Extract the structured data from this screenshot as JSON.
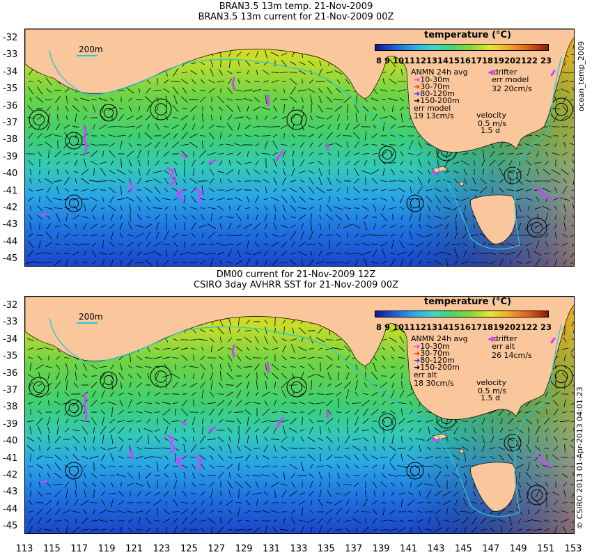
{
  "panels": [
    {
      "title_line1": "BRAN3.5 13m temp. 21-Nov-2009",
      "title_line2": "BRAN3.5 13m current for 21-Nov-2009 00Z",
      "colorbar_title": "temperature (°C)",
      "colorbar_ticks": "8  9 10111213141516171819202122 23",
      "depth_label": "200m",
      "anmn_title": "ANMN 24h avg",
      "anmn_items": [
        "10-30m",
        "30-70m",
        "80-120m",
        "150-200m"
      ],
      "err_label": "err model",
      "err_value": "19 13cm/s",
      "drifter_label": "drifter",
      "drifter_err_label": "err model",
      "drifter_err_value": "32 20cm/s",
      "velocity_label": "velocity",
      "velocity_scale": "0.5 m/s",
      "velocity_days": "1.5 d",
      "side_text": "ocean_temp_2009"
    },
    {
      "title_line1": "DM00 current for 21-Nov-2009 12Z",
      "title_line2": "CSIRO 3day AVHRR SST for 21-Nov-2009 00Z",
      "colorbar_title": "temperature (°C)",
      "colorbar_ticks": "8  9 10111213141516171819202122 23",
      "depth_label": "200m",
      "anmn_title": "ANMN 24h avg",
      "anmn_items": [
        "10-30m",
        "30-70m",
        "80-120m",
        "150-200m"
      ],
      "err_label": "err alt",
      "err_value": "18 30cm/s",
      "drifter_label": "drifter",
      "drifter_err_label": "err alt",
      "drifter_err_value": "26 14cm/s",
      "velocity_label": "velocity",
      "velocity_scale": "0.5 m/s",
      "velocity_days": "1.5 d",
      "side_text": "© CSIRO 2013  01-Apr-2013 04:01:23"
    }
  ],
  "lat_labels": [
    "-32",
    "-33",
    "-34",
    "-35",
    "-36",
    "-37",
    "-38",
    "-39",
    "-40",
    "-41",
    "-42",
    "-43",
    "-44",
    "-45"
  ],
  "lon_labels": [
    "113",
    "115",
    "117",
    "119",
    "121",
    "123",
    "125",
    "127",
    "129",
    "131",
    "133",
    "135",
    "137",
    "139",
    "141",
    "143",
    "145",
    "147",
    "149",
    "151",
    "153"
  ],
  "colors": {
    "land": "#f9c79b",
    "anmn": [
      "#ff33ff",
      "#ff3300",
      "#3333ff",
      "#000000"
    ],
    "drifter": "#cc44ff",
    "isobath": "#22c8d8"
  }
}
